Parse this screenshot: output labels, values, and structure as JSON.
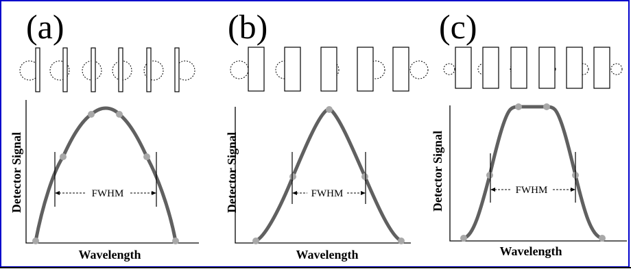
{
  "colors": {
    "frame": "#0000cc",
    "curve": "#606060",
    "points": "#a8a8a8",
    "line": "#000000"
  },
  "panels": [
    {
      "label": "(a)",
      "ylabel": "Detector Signal",
      "xlabel": "Wavelength",
      "fwhm_label": "FWHM"
    },
    {
      "label": "(b)",
      "ylabel": "Detector Signal",
      "xlabel": "Wavelength",
      "fwhm_label": "FWHM"
    },
    {
      "label": "(c)",
      "ylabel": "Detector Signal",
      "xlabel": "Wavelength",
      "fwhm_label": "FWHM"
    }
  ]
}
